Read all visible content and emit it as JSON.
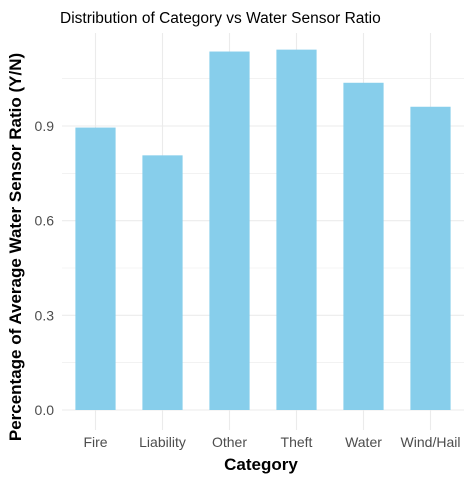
{
  "chart_data": {
    "type": "bar",
    "title": "Distribution of Category vs Water Sensor Ratio",
    "xlabel": "Category",
    "ylabel": "Percentage of Average Water Sensor Ratio (Y/N)",
    "categories": [
      "Fire",
      "Liability",
      "Other",
      "Theft",
      "Water",
      "Wind/Hail"
    ],
    "values": [
      0.895,
      0.807,
      1.136,
      1.142,
      1.037,
      0.961
    ],
    "yticks": [
      0.0,
      0.3,
      0.6,
      0.9
    ],
    "ytick_labels": [
      "0.0",
      "0.3",
      "0.6",
      "0.9"
    ],
    "ylim": [
      0,
      1.2
    ],
    "grid": true,
    "bar_color": "#87CEEB",
    "grid_color": "#ebebeb"
  }
}
